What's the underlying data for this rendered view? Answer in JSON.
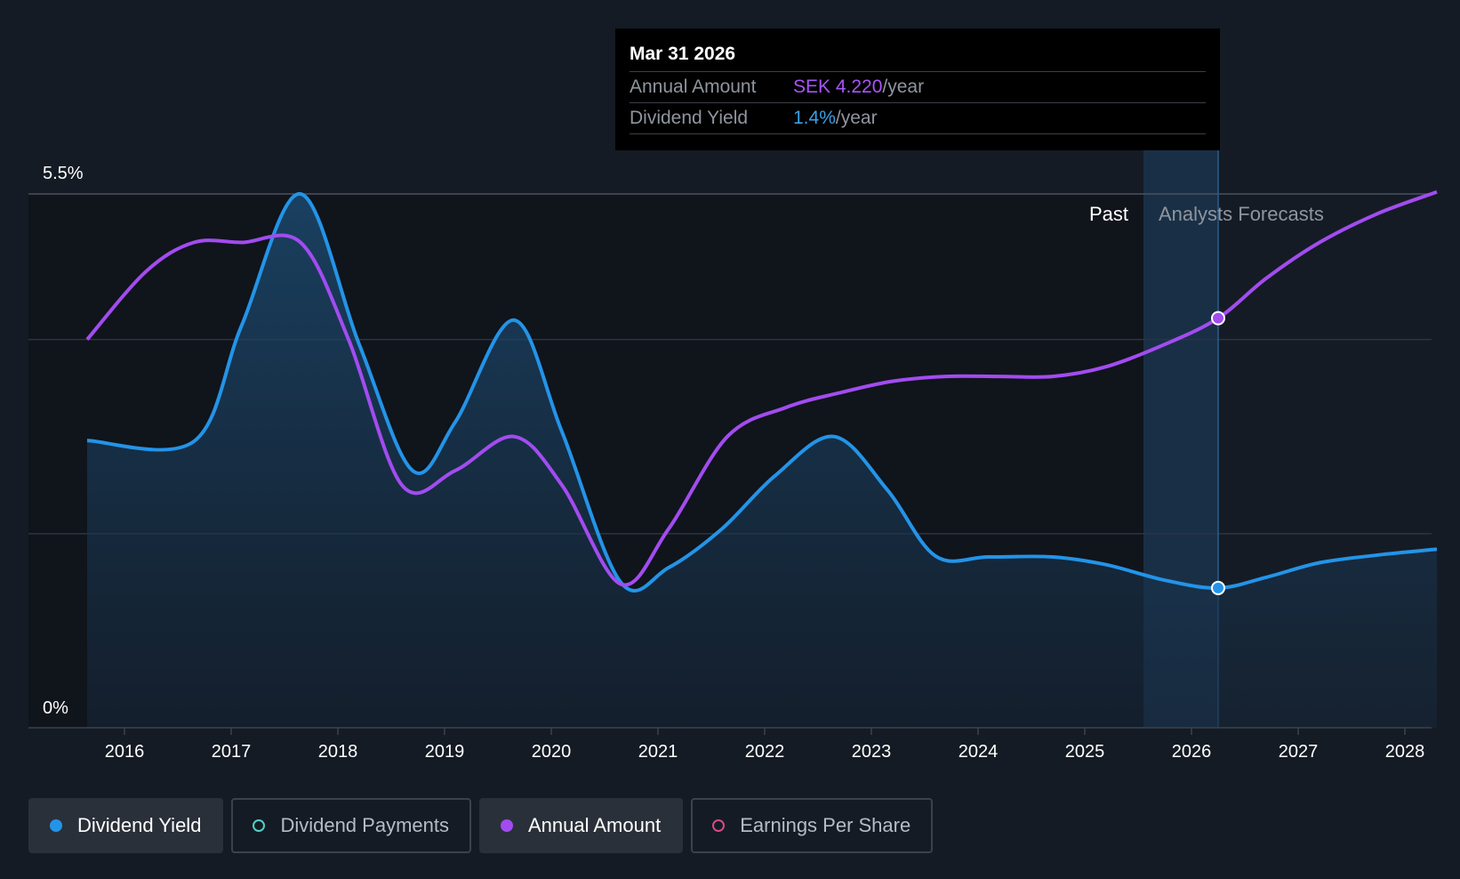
{
  "tooltip": {
    "date": "Mar 31 2026",
    "annual_label": "Annual Amount",
    "annual_value": "SEK 4.220",
    "annual_unit": "/year",
    "yield_label": "Dividend Yield",
    "yield_value": "1.4%",
    "yield_unit": "/year"
  },
  "regions": {
    "past": "Past",
    "forecast": "Analysts Forecasts"
  },
  "legend": [
    {
      "label": "Dividend Yield",
      "active": true,
      "color": "#2394e8",
      "filled": true,
      "icon": "filled-circle-icon"
    },
    {
      "label": "Dividend Payments",
      "active": false,
      "color": "#4fd1c5",
      "filled": false,
      "icon": "hollow-circle-icon"
    },
    {
      "label": "Annual Amount",
      "active": true,
      "color": "#a24cf0",
      "filled": true,
      "icon": "filled-circle-icon"
    },
    {
      "label": "Earnings Per Share",
      "active": false,
      "color": "#d6488a",
      "filled": false,
      "icon": "hollow-circle-icon"
    }
  ],
  "colors": {
    "background": "#151b24",
    "yield": "#2394e8",
    "annual": "#a24cf0",
    "forecast_band": "#1e4062",
    "grid": "#2d3540"
  },
  "chart_data": {
    "type": "line",
    "x_unit": "year",
    "xlim": [
      2015.15,
      2028.3
    ],
    "ylim": [
      0,
      5.5
    ],
    "y_tick_labels": [
      "0%",
      "5.5%"
    ],
    "x_tick_labels": [
      "2016",
      "2017",
      "2018",
      "2019",
      "2020",
      "2021",
      "2022",
      "2023",
      "2024",
      "2025",
      "2026",
      "2027",
      "2028"
    ],
    "x_ticks": [
      2016,
      2017,
      2018,
      2019,
      2020,
      2021,
      2022,
      2023,
      2024,
      2025,
      2026,
      2027,
      2028
    ],
    "grid": true,
    "past_until": 2025.55,
    "forecast_band": [
      2025.55,
      2026.25
    ],
    "highlight_x": 2026.25,
    "series": [
      {
        "name": "Dividend Yield",
        "area": true,
        "points": [
          [
            2015.65,
            2.96
          ],
          [
            2016.65,
            2.95
          ],
          [
            2017.1,
            4.15
          ],
          [
            2017.65,
            5.5
          ],
          [
            2018.2,
            3.95
          ],
          [
            2018.7,
            2.65
          ],
          [
            2019.1,
            3.15
          ],
          [
            2019.65,
            4.2
          ],
          [
            2020.1,
            3.05
          ],
          [
            2020.65,
            1.5
          ],
          [
            2021.1,
            1.65
          ],
          [
            2021.6,
            2.05
          ],
          [
            2022.1,
            2.6
          ],
          [
            2022.65,
            3.0
          ],
          [
            2023.15,
            2.45
          ],
          [
            2023.6,
            1.77
          ],
          [
            2024.1,
            1.76
          ],
          [
            2024.7,
            1.76
          ],
          [
            2025.2,
            1.68
          ],
          [
            2025.75,
            1.52
          ],
          [
            2026.25,
            1.44
          ],
          [
            2026.7,
            1.55
          ],
          [
            2027.2,
            1.7
          ],
          [
            2027.75,
            1.78
          ],
          [
            2028.3,
            1.84
          ]
        ]
      },
      {
        "name": "Annual Amount",
        "area": false,
        "points": [
          [
            2015.65,
            4.0
          ],
          [
            2016.2,
            4.7
          ],
          [
            2016.65,
            5.0
          ],
          [
            2017.1,
            5.0
          ],
          [
            2017.65,
            5.0
          ],
          [
            2018.1,
            4.0
          ],
          [
            2018.6,
            2.5
          ],
          [
            2019.1,
            2.65
          ],
          [
            2019.65,
            3.0
          ],
          [
            2020.1,
            2.5
          ],
          [
            2020.65,
            1.48
          ],
          [
            2021.1,
            2.05
          ],
          [
            2021.65,
            3.0
          ],
          [
            2022.2,
            3.3
          ],
          [
            2022.7,
            3.45
          ],
          [
            2023.2,
            3.57
          ],
          [
            2023.7,
            3.62
          ],
          [
            2024.2,
            3.62
          ],
          [
            2024.7,
            3.62
          ],
          [
            2025.2,
            3.72
          ],
          [
            2025.75,
            3.95
          ],
          [
            2026.25,
            4.22
          ],
          [
            2026.7,
            4.63
          ],
          [
            2027.2,
            5.0
          ],
          [
            2027.75,
            5.3
          ],
          [
            2028.3,
            5.52
          ]
        ]
      }
    ]
  }
}
